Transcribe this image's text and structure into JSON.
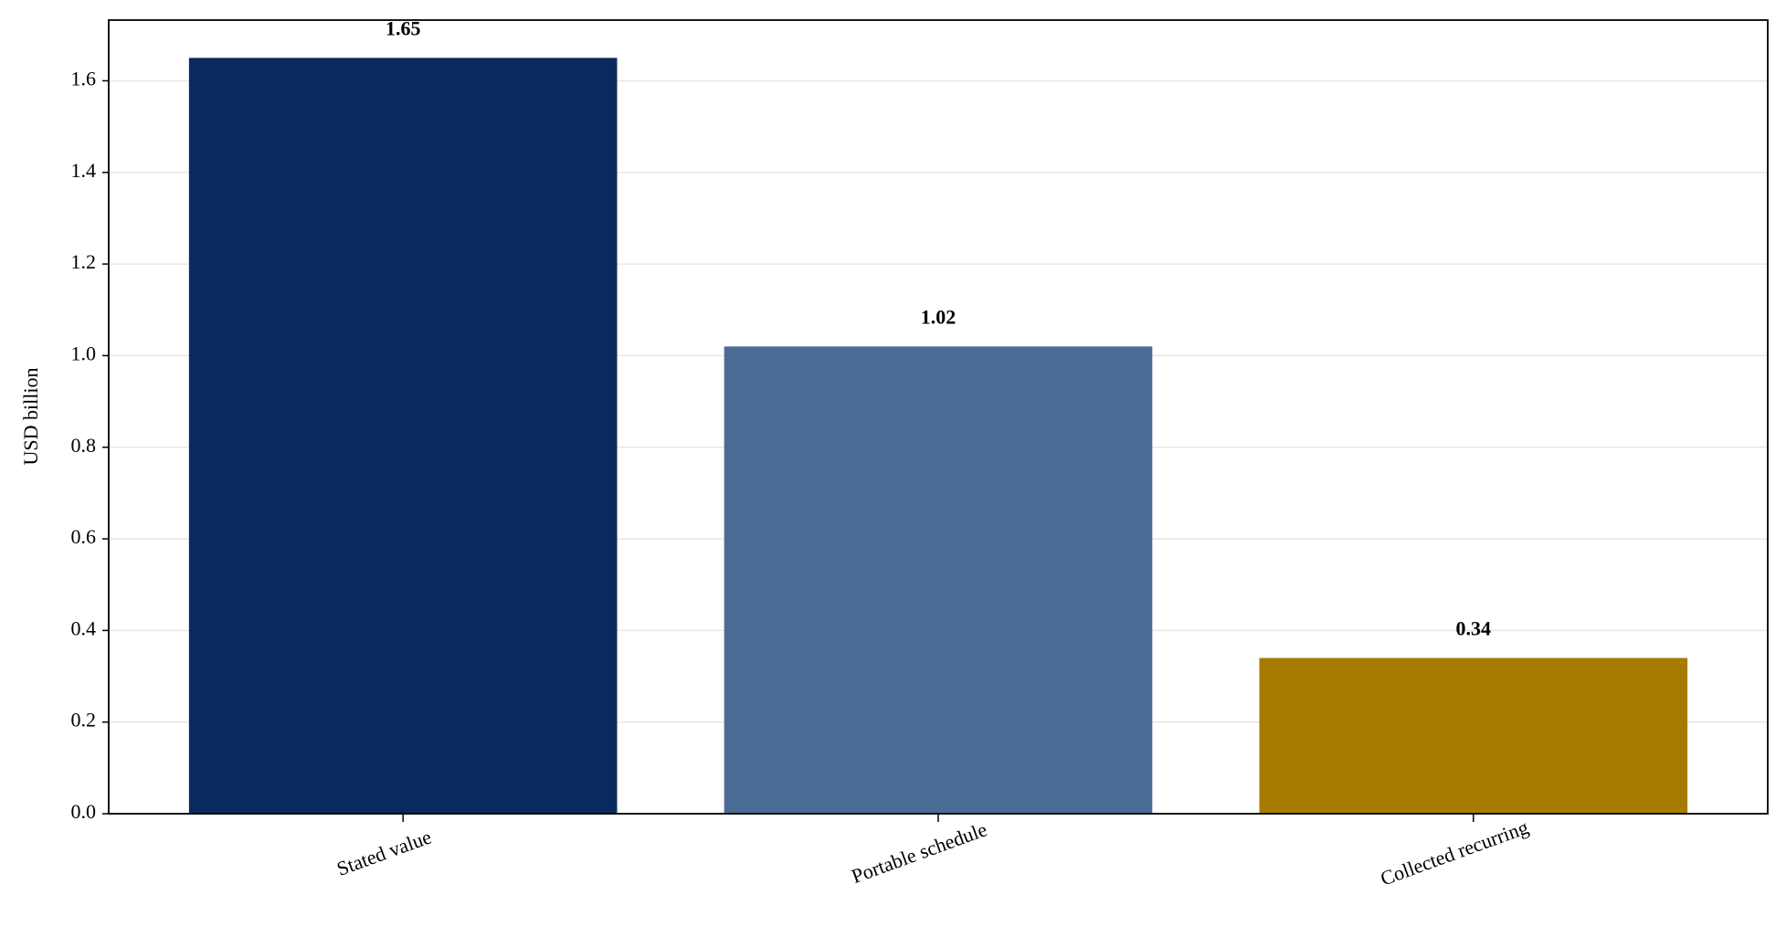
{
  "chart_data": {
    "type": "bar",
    "y_label": "USD billion",
    "categories": [
      "Stated value",
      "Portable schedule",
      "Collected recurring"
    ],
    "values": [
      1.65,
      1.02,
      0.34
    ],
    "colors": [
      "#0a2a5e",
      "#4a6b94",
      "#a67c00"
    ],
    "ylim": [
      0,
      1.7325
    ],
    "yticks": [
      {
        "value": 0,
        "label": "0.0"
      },
      0.2,
      0.4,
      0.6,
      0.8,
      {
        "value": 1,
        "label": "1.0"
      },
      1.2,
      1.4,
      1.6
    ],
    "grid": true
  }
}
